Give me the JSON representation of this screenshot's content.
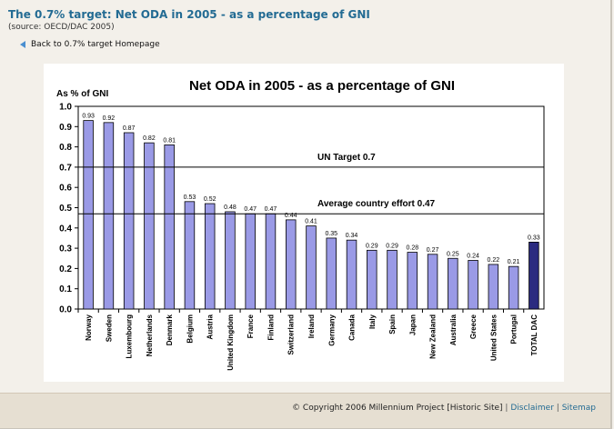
{
  "header": {
    "title": "The 0.7% target: Net ODA in 2005 - as a percentage of GNI",
    "source": "(source: OECD/DAC 2005)",
    "back_link": "Back to 0.7% target Homepage"
  },
  "chart_data": {
    "type": "bar",
    "title": "Net ODA in 2005 - as a percentage of GNI",
    "ylabel": "As % of GNI",
    "xlabel": "",
    "ylim": [
      0,
      1.0
    ],
    "yticks": [
      "0.0",
      "0.1",
      "0.2",
      "0.3",
      "0.4",
      "0.5",
      "0.6",
      "0.7",
      "0.8",
      "0.9",
      "1.0"
    ],
    "categories": [
      "Norway",
      "Sweden",
      "Luxembourg",
      "Netherlands",
      "Denmark",
      "Belgium",
      "Austria",
      "United Kingdom",
      "France",
      "Finland",
      "Switzerland",
      "Ireland",
      "Germany",
      "Canada",
      "Italy",
      "Spain",
      "Japan",
      "New Zealand",
      "Australia",
      "Greece",
      "United States",
      "Portugal",
      "TOTAL DAC"
    ],
    "values": [
      0.93,
      0.92,
      0.87,
      0.82,
      0.81,
      0.53,
      0.52,
      0.48,
      0.47,
      0.47,
      0.44,
      0.41,
      0.35,
      0.34,
      0.29,
      0.29,
      0.28,
      0.27,
      0.25,
      0.24,
      0.22,
      0.21,
      0.33
    ],
    "value_labels": [
      "0.93",
      "0.92",
      "0.87",
      "0.82",
      "0.81",
      "0.53",
      "0.52",
      "0.48",
      "0.47",
      "0.47",
      "0.44",
      "0.41",
      "0.35",
      "0.34",
      "0.29",
      "0.29",
      "0.28",
      "0.27",
      "0.25",
      "0.24",
      "0.22",
      "0.21",
      "0.33"
    ],
    "reference_lines": [
      {
        "label": "UN Target 0.7",
        "value": 0.7
      },
      {
        "label": "Average country effort 0.47",
        "value": 0.47
      }
    ],
    "bar_color": "#9a9ae6",
    "highlight_color": "#2b2b80",
    "highlight_category": "TOTAL DAC",
    "grid": false
  },
  "footer": {
    "copyright": "© Copyright 2006 Millennium Project [Historic Site]",
    "separator": "|",
    "disclaimer": "Disclaimer",
    "sitemap": "Sitemap"
  }
}
